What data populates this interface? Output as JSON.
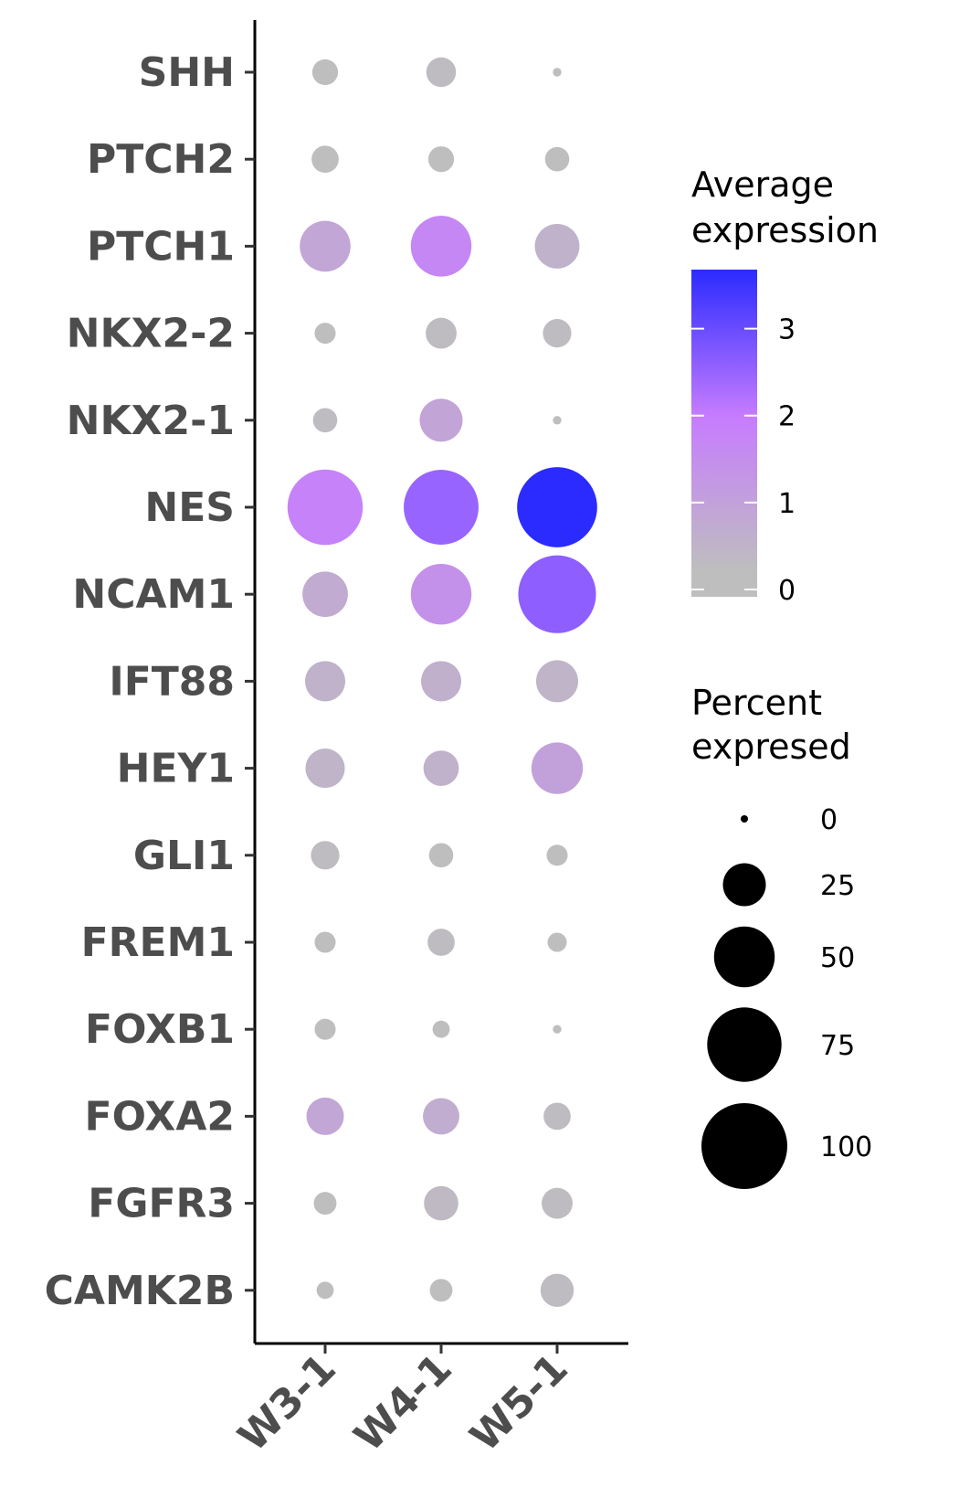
{
  "chart_data": {
    "type": "dot",
    "groups": [
      "W3-1",
      "W4-1",
      "W5-1"
    ],
    "genes": [
      "SHH",
      "PTCH2",
      "PTCH1",
      "NKX2-2",
      "NKX2-1",
      "NES",
      "NCAM1",
      "IFT88",
      "HEY1",
      "GLI1",
      "FREM1",
      "FOXB1",
      "FOXA2",
      "FGFR3",
      "CAMK2B"
    ],
    "avg_expression": [
      [
        0.0,
        0.05,
        0.0
      ],
      [
        0.0,
        0.0,
        0.0
      ],
      [
        0.7,
        1.6,
        0.35
      ],
      [
        0.0,
        0.1,
        0.1
      ],
      [
        0.05,
        0.75,
        0.0
      ],
      [
        1.75,
        2.4,
        3.5
      ],
      [
        0.55,
        1.3,
        2.5
      ],
      [
        0.35,
        0.4,
        0.3
      ],
      [
        0.3,
        0.35,
        0.85
      ],
      [
        0.05,
        0.0,
        0.0
      ],
      [
        0.0,
        0.05,
        0.0
      ],
      [
        0.0,
        0.0,
        0.0
      ],
      [
        0.7,
        0.5,
        0.05
      ],
      [
        0.0,
        0.15,
        0.05
      ],
      [
        0.0,
        0.0,
        0.1
      ]
    ],
    "pct_expressed": [
      [
        9,
        12,
        1
      ],
      [
        10,
        9,
        8
      ],
      [
        35,
        50,
        27
      ],
      [
        6,
        13,
        11
      ],
      [
        8,
        25,
        1
      ],
      [
        77,
        76,
        87
      ],
      [
        28,
        50,
        82
      ],
      [
        22,
        22,
        24
      ],
      [
        21,
        17,
        36
      ],
      [
        11,
        8,
        6
      ],
      [
        6,
        10,
        5
      ],
      [
        6,
        4,
        1
      ],
      [
        19,
        18,
        10
      ],
      [
        7,
        16,
        13
      ],
      [
        4,
        7,
        15
      ]
    ],
    "color_legend": {
      "title_line1": "Average",
      "title_line2": "expression",
      "ticks": [
        "0",
        "1",
        "2",
        "3"
      ],
      "tick_values": [
        0,
        1,
        2,
        3
      ],
      "max": 3.5,
      "color_low": "#bebebe",
      "color_mid": "#c77cff",
      "color_high": "#2b2bff"
    },
    "size_legend": {
      "title_line1": "Percent",
      "title_line2": "expresed",
      "labels": [
        "0",
        "25",
        "50",
        "75",
        "100"
      ],
      "values": [
        0,
        25,
        50,
        75,
        100
      ]
    }
  }
}
